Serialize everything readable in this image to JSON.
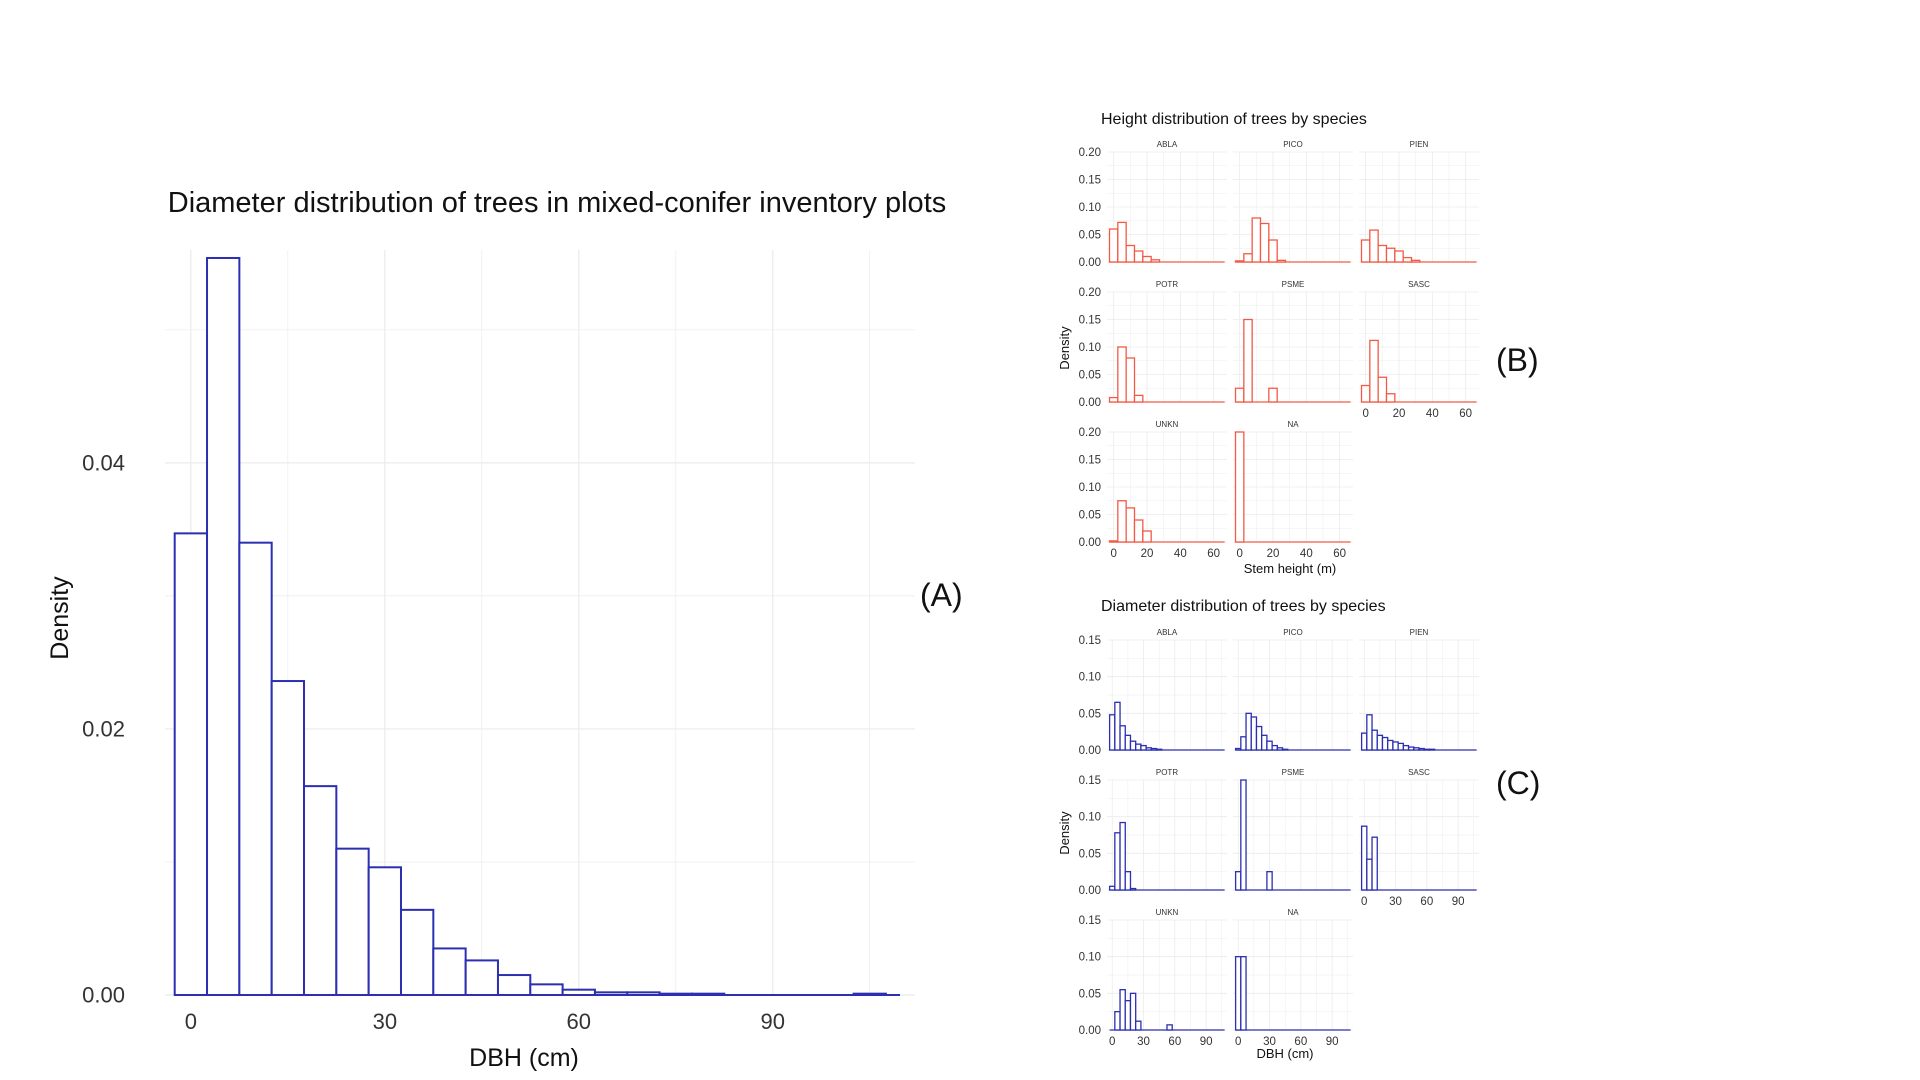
{
  "panel_labels": {
    "a": "(A)",
    "b": "(B)",
    "c": "(C)"
  },
  "colors": {
    "blue": "#2b2fb0",
    "red": "#f25a45",
    "grid": "#ebebeb",
    "text": "#333333"
  },
  "chart_data": [
    {
      "id": "A",
      "type": "bar",
      "title": "Diameter distribution of trees in mixed-conifer inventory plots",
      "xlabel": "DBH (cm)",
      "ylabel": "Density",
      "xlim": [
        -4,
        112
      ],
      "ylim": [
        0,
        0.056
      ],
      "xticks": [
        0,
        30,
        60,
        90
      ],
      "yticks": [
        0.0,
        0.02,
        0.04
      ],
      "ytick_labels": [
        "0.00",
        "0.02",
        "0.04"
      ],
      "grid": true,
      "bin_width": 5,
      "x": [
        0,
        5,
        10,
        15,
        20,
        25,
        30,
        35,
        40,
        45,
        50,
        55,
        60,
        65,
        70,
        75,
        80,
        85,
        90,
        95,
        100,
        105
      ],
      "values": [
        0.0347,
        0.0554,
        0.034,
        0.0236,
        0.0157,
        0.011,
        0.0096,
        0.0064,
        0.0035,
        0.0026,
        0.0015,
        0.0008,
        0.0004,
        0.0002,
        0.0002,
        0.0001,
        0.0001,
        0.0,
        0.0,
        0.0,
        0.0,
        0.0001
      ]
    },
    {
      "id": "B",
      "type": "bar",
      "title": "Height distribution of trees by species",
      "xlabel": "Stem height (m)",
      "ylabel": "Density",
      "xlim": [
        -4,
        68
      ],
      "ylim": [
        0,
        0.2
      ],
      "xticks": [
        0,
        20,
        40,
        60
      ],
      "yticks": [
        0,
        0.05,
        0.1,
        0.15,
        0.2
      ],
      "ytick_labels": [
        "0.00",
        "0.05",
        "0.10",
        "0.15",
        "0.20"
      ],
      "grid": true,
      "bin_width": 5,
      "facets": [
        {
          "name": "ABLA",
          "values": [
            0.06,
            0.072,
            0.03,
            0.02,
            0.01,
            0.004
          ]
        },
        {
          "name": "PICO",
          "values": [
            0.002,
            0.015,
            0.08,
            0.07,
            0.04,
            0.003
          ]
        },
        {
          "name": "PIEN",
          "values": [
            0.04,
            0.058,
            0.03,
            0.025,
            0.02,
            0.008,
            0.003
          ]
        },
        {
          "name": "POTR",
          "values": [
            0.008,
            0.1,
            0.08,
            0.012
          ]
        },
        {
          "name": "PSME",
          "values": [
            0.025,
            0.15,
            0,
            0,
            0.025
          ]
        },
        {
          "name": "SASC",
          "values": [
            0.03,
            0.112,
            0.045,
            0.015
          ]
        },
        {
          "name": "UNKN",
          "values": [
            0.002,
            0.075,
            0.062,
            0.04,
            0.02
          ]
        },
        {
          "name": "NA",
          "values": [
            0.2
          ]
        }
      ]
    },
    {
      "id": "C",
      "type": "bar",
      "title": "Diameter distribution of trees by species",
      "xlabel": "DBH (cm)",
      "ylabel": "Density",
      "xlim": [
        -5,
        110
      ],
      "ylim": [
        0,
        0.15
      ],
      "xticks": [
        0,
        30,
        60,
        90
      ],
      "yticks": [
        0,
        0.05,
        0.1,
        0.15
      ],
      "ytick_labels": [
        "0.00",
        "0.05",
        "0.10",
        "0.15"
      ],
      "grid": true,
      "bin_width": 5,
      "facets": [
        {
          "name": "ABLA",
          "values": [
            0.048,
            0.065,
            0.033,
            0.02,
            0.012,
            0.008,
            0.006,
            0.003,
            0.002,
            0.001
          ]
        },
        {
          "name": "PICO",
          "values": [
            0.002,
            0.018,
            0.05,
            0.045,
            0.032,
            0.02,
            0.012,
            0.006,
            0.003,
            0.001
          ]
        },
        {
          "name": "PIEN",
          "values": [
            0.023,
            0.048,
            0.027,
            0.02,
            0.017,
            0.013,
            0.011,
            0.009,
            0.006,
            0.004,
            0.003,
            0.002,
            0.001,
            0.001
          ]
        },
        {
          "name": "POTR",
          "values": [
            0.005,
            0.078,
            0.092,
            0.025,
            0.002
          ]
        },
        {
          "name": "PSME",
          "values": [
            0.025,
            0.15,
            0,
            0,
            0,
            0,
            0.025
          ]
        },
        {
          "name": "SASC",
          "values": [
            0.087,
            0.042,
            0.072
          ]
        },
        {
          "name": "UNKN",
          "values": [
            0,
            0.025,
            0.055,
            0.04,
            0.05,
            0.012,
            0,
            0,
            0,
            0,
            0,
            0.007
          ]
        },
        {
          "name": "NA",
          "values": [
            0.1,
            0.1
          ]
        }
      ]
    }
  ]
}
